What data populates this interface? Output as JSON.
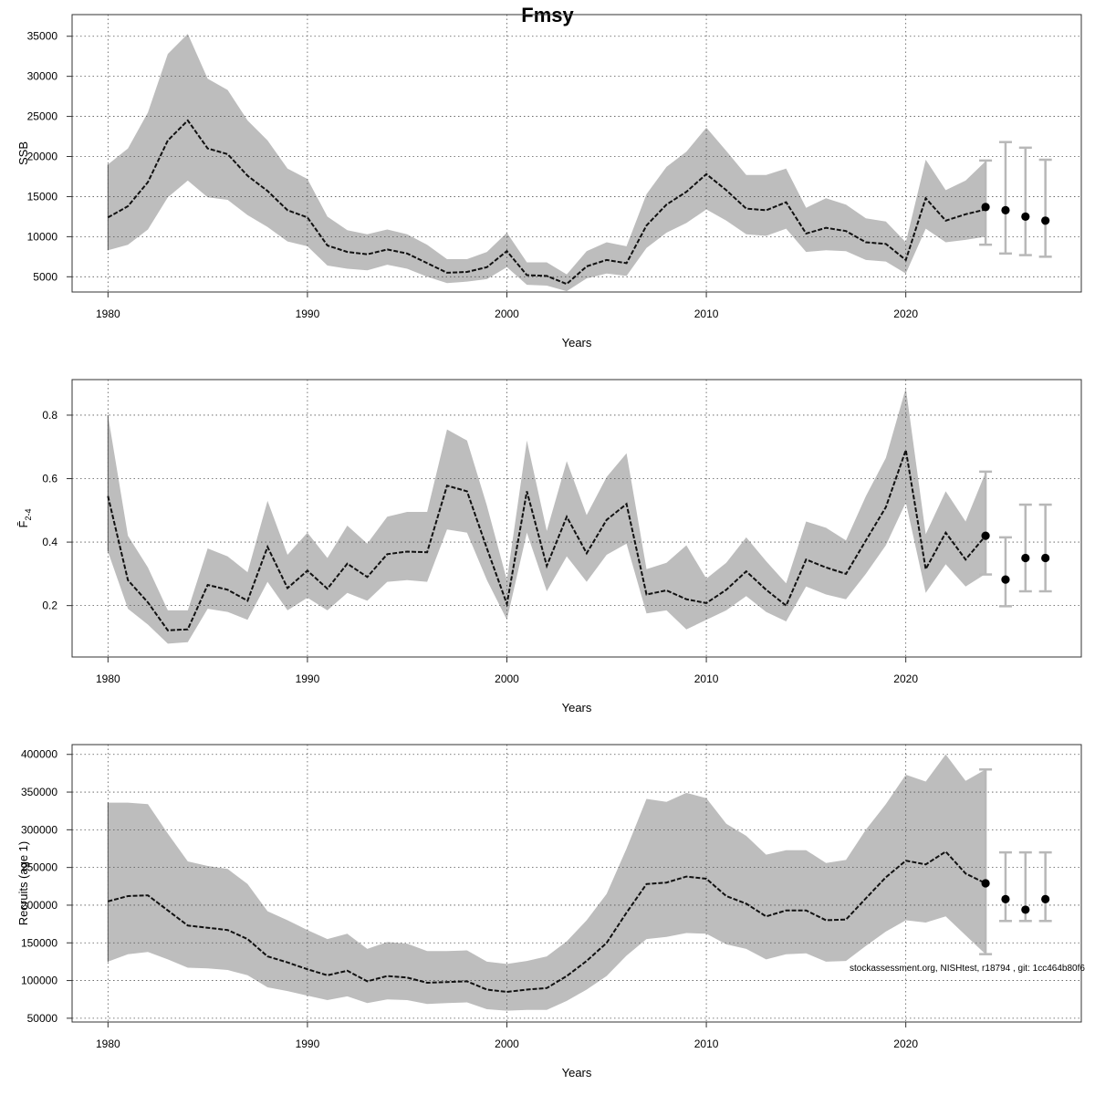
{
  "figure": {
    "title": "Fmsy",
    "footnote": "stockassessment.org, NISHtest, r18794 , git: 1cc464b80f6"
  },
  "chart_data": [
    {
      "type": "line",
      "panel": "ssb",
      "xlabel": "Years",
      "ylabel": "SSB",
      "xlim": [
        1978.2,
        2028.8
      ],
      "ylim": [
        3100,
        37700
      ],
      "x_ticks": [
        1980,
        1990,
        2000,
        2010,
        2020
      ],
      "y_ticks": [
        5000,
        10000,
        15000,
        20000,
        25000,
        30000,
        35000
      ],
      "grid": true,
      "years": [
        1980,
        1981,
        1982,
        1983,
        1984,
        1985,
        1986,
        1987,
        1988,
        1989,
        1990,
        1991,
        1992,
        1993,
        1994,
        1995,
        1996,
        1997,
        1998,
        1999,
        2000,
        2001,
        2002,
        2003,
        2004,
        2005,
        2006,
        2007,
        2008,
        2009,
        2010,
        2011,
        2012,
        2013,
        2014,
        2015,
        2016,
        2017,
        2018,
        2019,
        2020,
        2021,
        2022,
        2023,
        2024
      ],
      "estimate": [
        12400,
        13800,
        16800,
        22000,
        24500,
        21000,
        20300,
        17600,
        15700,
        13300,
        12400,
        8900,
        8100,
        7800,
        8400,
        7900,
        6700,
        5500,
        5600,
        6200,
        8200,
        5200,
        5100,
        4100,
        6300,
        7100,
        6700,
        11400,
        14000,
        15600,
        17800,
        15800,
        13500,
        13300,
        14300,
        10400,
        11100,
        10700,
        9300,
        9100,
        7100,
        14800,
        12000,
        12800,
        13400
      ],
      "lower": [
        8300,
        9000,
        10900,
        14900,
        17000,
        14900,
        14600,
        12700,
        11200,
        9400,
        8800,
        6400,
        6000,
        5800,
        6500,
        6000,
        5000,
        4200,
        4400,
        4700,
        6200,
        4000,
        3900,
        3200,
        4800,
        5400,
        5100,
        8600,
        10500,
        11700,
        13400,
        12000,
        10300,
        10100,
        11000,
        8100,
        8300,
        8200,
        7100,
        6900,
        5400,
        11000,
        9300,
        9600,
        10000
      ],
      "upper": [
        19000,
        21000,
        25500,
        32800,
        35300,
        29700,
        28300,
        24500,
        22000,
        18500,
        17200,
        12500,
        10800,
        10300,
        10900,
        10300,
        9000,
        7200,
        7200,
        8100,
        10500,
        6800,
        6800,
        5300,
        8200,
        9300,
        8800,
        15300,
        18700,
        20600,
        23600,
        20700,
        17700,
        17700,
        18500,
        13600,
        14800,
        14000,
        12300,
        11900,
        9300,
        19600,
        15800,
        17000,
        19400
      ],
      "forecast": {
        "years": [
          2024,
          2025,
          2026,
          2027
        ],
        "values": [
          13700,
          13300,
          12500,
          12000
        ],
        "lower": [
          9000,
          7900,
          7700,
          7500
        ],
        "upper": [
          19500,
          21800,
          21100,
          19600
        ]
      }
    },
    {
      "type": "line",
      "panel": "fbar",
      "xlabel": "Years",
      "ylabel": "F̄",
      "ylabel_sub": "2-4",
      "xlim": [
        1978.2,
        2028.8
      ],
      "ylim": [
        0.038,
        0.912
      ],
      "x_ticks": [
        1980,
        1990,
        2000,
        2010,
        2020
      ],
      "y_ticks": [
        0.2,
        0.4,
        0.6,
        0.8
      ],
      "y_tick_labels": [
        "0.2",
        "0.4",
        "0.6",
        "0.8"
      ],
      "grid": true,
      "years": [
        1980,
        1981,
        1982,
        1983,
        1984,
        1985,
        1986,
        1987,
        1988,
        1989,
        1990,
        1991,
        1992,
        1993,
        1994,
        1995,
        1996,
        1997,
        1998,
        1999,
        2000,
        2001,
        2002,
        2003,
        2004,
        2005,
        2006,
        2007,
        2008,
        2009,
        2010,
        2011,
        2012,
        2013,
        2014,
        2015,
        2016,
        2017,
        2018,
        2019,
        2020,
        2021,
        2022,
        2023,
        2024
      ],
      "estimate": [
        0.545,
        0.28,
        0.21,
        0.122,
        0.125,
        0.265,
        0.25,
        0.215,
        0.385,
        0.255,
        0.31,
        0.253,
        0.332,
        0.29,
        0.362,
        0.37,
        0.368,
        0.578,
        0.56,
        0.38,
        0.205,
        0.56,
        0.325,
        0.48,
        0.365,
        0.47,
        0.52,
        0.235,
        0.248,
        0.22,
        0.208,
        0.25,
        0.308,
        0.25,
        0.2,
        0.345,
        0.32,
        0.3,
        0.405,
        0.51,
        0.69,
        0.315,
        0.43,
        0.345,
        0.42
      ],
      "lower": [
        0.37,
        0.19,
        0.14,
        0.08,
        0.085,
        0.19,
        0.18,
        0.155,
        0.275,
        0.185,
        0.225,
        0.185,
        0.24,
        0.215,
        0.275,
        0.28,
        0.275,
        0.44,
        0.43,
        0.28,
        0.155,
        0.43,
        0.245,
        0.355,
        0.275,
        0.36,
        0.395,
        0.175,
        0.185,
        0.125,
        0.155,
        0.185,
        0.23,
        0.18,
        0.15,
        0.26,
        0.235,
        0.22,
        0.3,
        0.39,
        0.525,
        0.24,
        0.33,
        0.26,
        0.3
      ],
      "upper": [
        0.8,
        0.42,
        0.32,
        0.185,
        0.185,
        0.38,
        0.355,
        0.305,
        0.53,
        0.36,
        0.43,
        0.35,
        0.452,
        0.395,
        0.48,
        0.495,
        0.495,
        0.755,
        0.72,
        0.515,
        0.28,
        0.72,
        0.435,
        0.655,
        0.485,
        0.605,
        0.68,
        0.315,
        0.335,
        0.39,
        0.285,
        0.335,
        0.415,
        0.34,
        0.27,
        0.465,
        0.445,
        0.405,
        0.545,
        0.665,
        0.885,
        0.425,
        0.56,
        0.465,
        0.62
      ],
      "forecast": {
        "years": [
          2024,
          2025,
          2026,
          2027
        ],
        "values": [
          0.42,
          0.282,
          0.35,
          0.35
        ],
        "lower": [
          0.298,
          0.198,
          0.245,
          0.245
        ],
        "upper": [
          0.622,
          0.415,
          0.518,
          0.518
        ]
      }
    },
    {
      "type": "line",
      "panel": "recruits",
      "xlabel": "Years",
      "ylabel": "Recruits (age 1)",
      "xlim": [
        1978.2,
        2028.8
      ],
      "ylim": [
        45000,
        413000
      ],
      "x_ticks": [
        1980,
        1990,
        2000,
        2010,
        2020
      ],
      "y_ticks": [
        50000,
        100000,
        150000,
        200000,
        250000,
        300000,
        350000,
        400000
      ],
      "grid": true,
      "years": [
        1980,
        1981,
        1982,
        1983,
        1984,
        1985,
        1986,
        1987,
        1988,
        1989,
        1990,
        1991,
        1992,
        1993,
        1994,
        1995,
        1996,
        1997,
        1998,
        1999,
        2000,
        2001,
        2002,
        2003,
        2004,
        2005,
        2006,
        2007,
        2008,
        2009,
        2010,
        2011,
        2012,
        2013,
        2014,
        2015,
        2016,
        2017,
        2018,
        2019,
        2020,
        2021,
        2022,
        2023,
        2024
      ],
      "estimate": [
        205000,
        212000,
        213000,
        193000,
        173000,
        170000,
        167000,
        155000,
        132000,
        124000,
        115000,
        107000,
        113000,
        99000,
        106000,
        104000,
        97000,
        98000,
        99000,
        88000,
        85000,
        88000,
        90000,
        106000,
        126000,
        150000,
        190000,
        228000,
        230000,
        238000,
        235000,
        212000,
        202000,
        185000,
        193000,
        193000,
        180000,
        181000,
        209000,
        237000,
        259000,
        254000,
        271000,
        242000,
        229000
      ],
      "lower": [
        125000,
        135000,
        138000,
        128000,
        117000,
        116000,
        114000,
        107000,
        91000,
        86000,
        80000,
        74000,
        79000,
        70000,
        75000,
        74000,
        69000,
        70000,
        71000,
        62000,
        60000,
        61000,
        61000,
        73000,
        88000,
        106000,
        133000,
        155000,
        158000,
        163000,
        162000,
        148000,
        142000,
        128000,
        135000,
        136000,
        125000,
        126000,
        146000,
        165000,
        180000,
        177000,
        185000,
        160000,
        135000
      ],
      "upper": [
        336000,
        336000,
        334000,
        295000,
        258000,
        252000,
        248000,
        228000,
        192000,
        180000,
        167000,
        155000,
        162000,
        142000,
        151000,
        149000,
        139000,
        139000,
        140000,
        125000,
        122000,
        126000,
        132000,
        152000,
        180000,
        215000,
        275000,
        341000,
        337000,
        349000,
        342000,
        308000,
        292000,
        267000,
        273000,
        273000,
        256000,
        260000,
        300000,
        334000,
        373000,
        364000,
        400000,
        365000,
        380000
      ],
      "forecast": {
        "years": [
          2024,
          2025,
          2026,
          2027
        ],
        "values": [
          229000,
          208000,
          194000,
          208000
        ],
        "lower": [
          135000,
          179000,
          179000,
          179000
        ],
        "upper": [
          380000,
          270000,
          270000,
          270000
        ]
      }
    }
  ]
}
